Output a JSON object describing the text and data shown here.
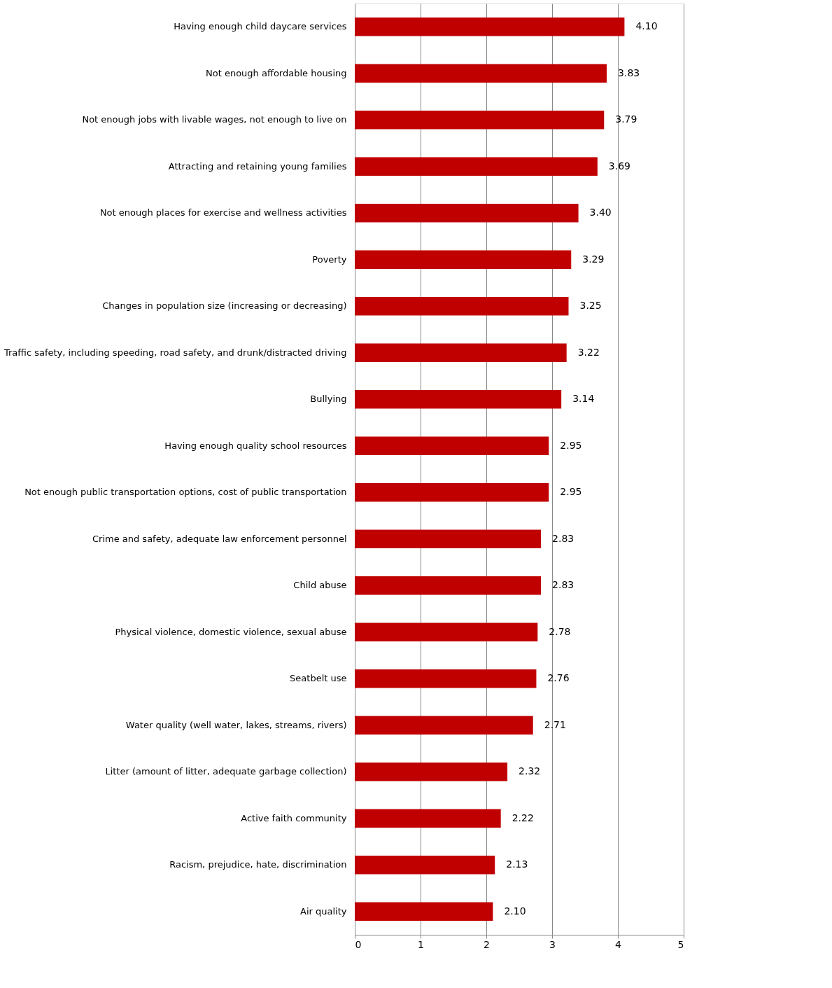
{
  "chart_data": {
    "type": "bar",
    "orientation": "horizontal",
    "categories": [
      "Having enough child daycare services",
      "Not enough affordable housing",
      "Not enough jobs with livable wages, not enough to live on",
      "Attracting and retaining young families",
      "Not enough places for exercise and wellness activities",
      "Poverty",
      "Changes in population size (increasing or decreasing)",
      "Traffic safety, including speeding, road safety, and drunk/distracted driving",
      "Bullying",
      "Having enough quality school resources",
      "Not enough public transportation options, cost of public transportation",
      "Crime and safety, adequate law enforcement personnel",
      "Child abuse",
      "Physical violence, domestic violence, sexual abuse",
      "Seatbelt use",
      "Water quality (well water, lakes, streams, rivers)",
      "Litter (amount of litter, adequate garbage collection)",
      "Active faith community",
      "Racism, prejudice, hate, discrimination",
      "Air quality"
    ],
    "values": [
      4.1,
      3.83,
      3.79,
      3.69,
      3.4,
      3.29,
      3.25,
      3.22,
      3.14,
      2.95,
      2.95,
      2.83,
      2.83,
      2.78,
      2.76,
      2.71,
      2.32,
      2.22,
      2.13,
      2.1
    ],
    "value_labels": [
      "4.10",
      "3.83",
      "3.79",
      "3.69",
      "3.40",
      "3.29",
      "3.25",
      "3.22",
      "3.14",
      "2.95",
      "2.95",
      "2.83",
      "2.83",
      "2.78",
      "2.76",
      "2.71",
      "2.32",
      "2.22",
      "2.13",
      "2.10"
    ],
    "color": "#c00000",
    "xlim": [
      0,
      5
    ],
    "xticks": [
      0,
      1,
      2,
      3,
      4,
      5
    ],
    "grid": "x"
  }
}
